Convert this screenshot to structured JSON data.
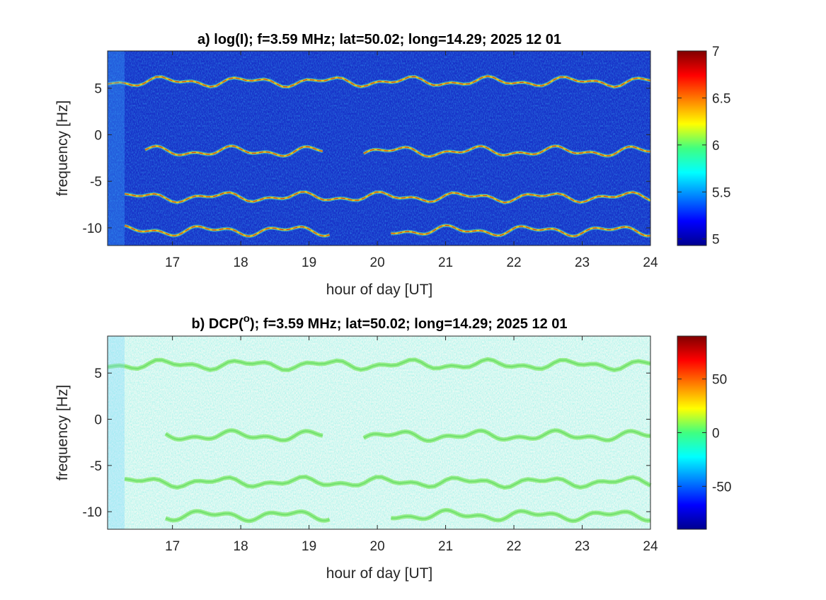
{
  "chart_data": [
    {
      "type": "heatmap",
      "panel": "a",
      "title_prefix": "a) log(I); f=3.59 MHz;  lat=50.02; long=14.29; 2025 12 01",
      "title_text": "a) log(I); f=3.59 MHz;  lat=50.02; long=14.29; 2025 12 01",
      "xlabel": "hour of day [UT]",
      "ylabel": "frequency [Hz]",
      "xlim": [
        16.05,
        24
      ],
      "ylim": [
        -11.9,
        9
      ],
      "xticks": [
        17,
        18,
        19,
        20,
        21,
        22,
        23,
        24
      ],
      "xtick_labels": [
        "17",
        "18",
        "19",
        "20",
        "21",
        "22",
        "23",
        "24"
      ],
      "yticks": [
        5,
        0,
        -5,
        -10
      ],
      "ytick_labels": [
        "5",
        "0",
        "-5",
        "-10"
      ],
      "colorbar": {
        "colormap": "jet",
        "clim": [
          4.93,
          7
        ],
        "ticks": [
          7,
          6.5,
          6,
          5.5,
          5
        ],
        "tick_labels": [
          "7",
          "6.5",
          "6",
          "5.5",
          "5"
        ]
      },
      "background_color": "#1733c8",
      "traces": [
        {
          "freq": 5.7,
          "segments": [
            [
              16.05,
              24
            ]
          ],
          "peak_value": 7
        },
        {
          "freq": -1.8,
          "segments": [
            [
              16.6,
              19.2
            ],
            [
              19.8,
              24
            ]
          ],
          "peak_value": 6.6
        },
        {
          "freq": -6.7,
          "segments": [
            [
              16.3,
              24
            ]
          ],
          "peak_value": 7
        },
        {
          "freq": -10.3,
          "segments": [
            [
              16.3,
              19.3
            ],
            [
              20.2,
              24
            ]
          ],
          "peak_value": 6.6
        }
      ]
    },
    {
      "type": "heatmap",
      "panel": "b",
      "title_text": "b) DCP(",
      "title_superscript": "o",
      "title_suffix": "); f=3.59 MHz;  lat=50.02; long=14.29; 2025 12 01",
      "xlabel": "hour of day [UT]",
      "ylabel": "frequency [Hz]",
      "xlim": [
        16.05,
        24
      ],
      "ylim": [
        -11.9,
        9
      ],
      "xticks": [
        17,
        18,
        19,
        20,
        21,
        22,
        23,
        24
      ],
      "xtick_labels": [
        "17",
        "18",
        "19",
        "20",
        "21",
        "22",
        "23",
        "24"
      ],
      "yticks": [
        5,
        0,
        -5,
        -10
      ],
      "ytick_labels": [
        "5",
        "0",
        "-5",
        "-10"
      ],
      "colorbar": {
        "colormap": "jet",
        "clim": [
          -90,
          90
        ],
        "ticks": [
          50,
          0,
          -50
        ],
        "tick_labels": [
          "50",
          "0",
          "-50"
        ]
      },
      "background_color": "#eafaf4",
      "traces": [
        {
          "freq": 5.9,
          "segments": [
            [
              16.05,
              24
            ]
          ]
        },
        {
          "freq": -1.8,
          "segments": [
            [
              16.9,
              19.2
            ],
            [
              19.8,
              24
            ]
          ]
        },
        {
          "freq": -6.8,
          "segments": [
            [
              16.3,
              24
            ]
          ]
        },
        {
          "freq": -10.4,
          "segments": [
            [
              16.9,
              19.3
            ],
            [
              20.2,
              24
            ]
          ]
        }
      ]
    }
  ]
}
